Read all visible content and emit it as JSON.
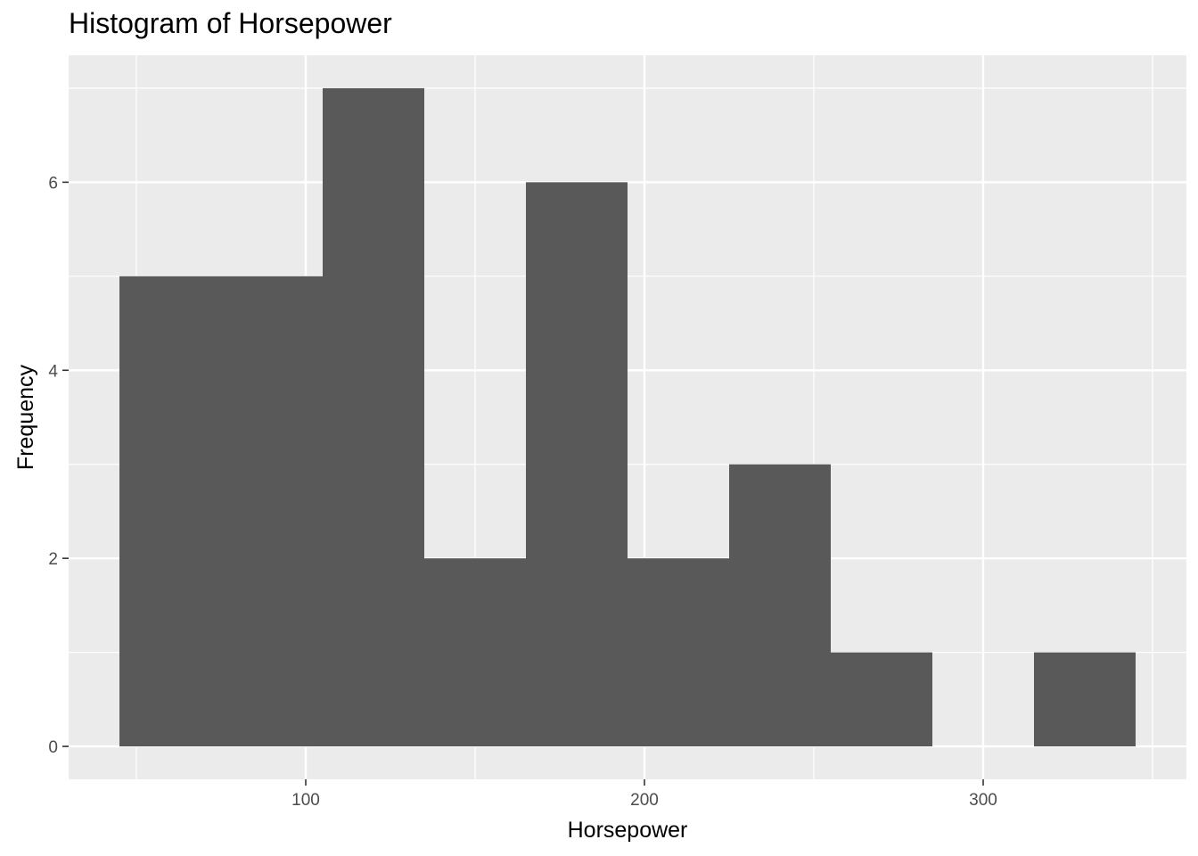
{
  "chart_data": {
    "type": "bar",
    "title": "Histogram of Horsepower",
    "xlabel": "Horsepower",
    "ylabel": "Frequency",
    "bins": [
      {
        "x0": 45,
        "x1": 75,
        "count": 5
      },
      {
        "x0": 75,
        "x1": 105,
        "count": 5
      },
      {
        "x0": 105,
        "x1": 135,
        "count": 7
      },
      {
        "x0": 135,
        "x1": 165,
        "count": 2
      },
      {
        "x0": 165,
        "x1": 195,
        "count": 6
      },
      {
        "x0": 195,
        "x1": 225,
        "count": 2
      },
      {
        "x0": 225,
        "x1": 255,
        "count": 3
      },
      {
        "x0": 255,
        "x1": 285,
        "count": 1
      },
      {
        "x0": 285,
        "x1": 315,
        "count": 0
      },
      {
        "x0": 315,
        "x1": 345,
        "count": 1
      }
    ],
    "xlim": [
      30,
      360
    ],
    "ylim": [
      -0.35,
      7.35
    ],
    "x_ticks": [
      100,
      200,
      300
    ],
    "x_tick_labels": [
      "100",
      "200",
      "300"
    ],
    "x_minor": [
      50,
      150,
      250,
      350
    ],
    "y_ticks": [
      0,
      2,
      4,
      6
    ],
    "y_tick_labels": [
      "0",
      "2",
      "4",
      "6"
    ],
    "y_minor": [
      1,
      3,
      5,
      7
    ],
    "grid": true,
    "colors": {
      "panel": "#ebebeb",
      "grid": "#ffffff",
      "bar": "#595959",
      "tick_text": "#4d4d4d",
      "tick_mark": "#333333"
    }
  }
}
